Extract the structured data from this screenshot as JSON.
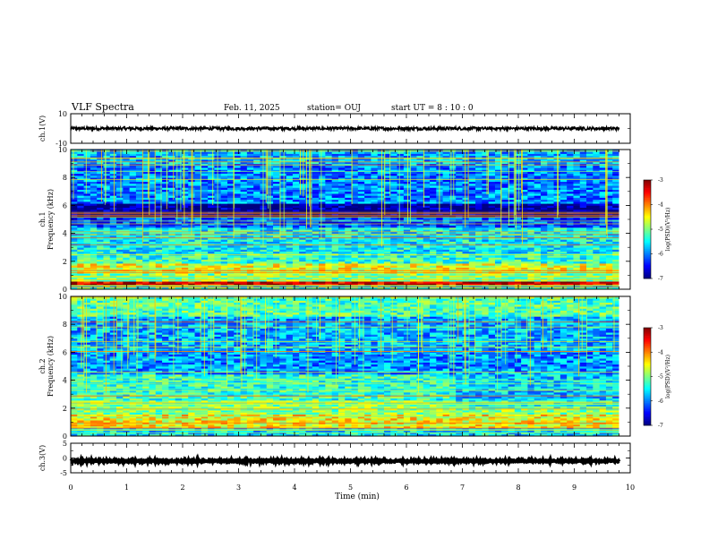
{
  "header": {
    "title": "VLF Spectra",
    "date": "Feb. 11, 2025",
    "station": "station= OUJ",
    "start": "start  UT =   8 : 10 : 0"
  },
  "chart_data": [
    {
      "type": "line",
      "name": "ch1-waveform",
      "ylabel": "ch.1(V)",
      "xlim": [
        0,
        10
      ],
      "ylim": [
        -10,
        10
      ],
      "yticks": [
        "10",
        "-10"
      ],
      "mean_level": 0,
      "noise_amplitude": 1.0,
      "data_end_min": 9.8,
      "color": "#000000"
    },
    {
      "type": "heatmap",
      "name": "ch1-spectrogram",
      "ylabel_line1": "ch.1",
      "ylabel_line2": "Frequency  (kHz)",
      "xlim": [
        0,
        10
      ],
      "ylim": [
        0,
        10
      ],
      "yticks": [
        "0",
        "2",
        "4",
        "6",
        "8",
        "10"
      ],
      "colorscale": {
        "label": "log(PSD)(V²/Hz)",
        "range": [
          -7,
          -3
        ],
        "ticks": [
          "-3",
          "-4",
          "-5",
          "-6",
          "-7"
        ]
      },
      "data_end_min": 9.8,
      "bands_khz": [
        {
          "from": 0.0,
          "to": 0.25,
          "level": -5.2
        },
        {
          "from": 0.25,
          "to": 0.55,
          "level": -3.3
        },
        {
          "from": 0.55,
          "to": 1.2,
          "level": -5.0
        },
        {
          "from": 1.2,
          "to": 1.9,
          "level": -4.6
        },
        {
          "from": 1.9,
          "to": 2.6,
          "level": -5.3
        },
        {
          "from": 2.6,
          "to": 4.4,
          "level": -5.5
        },
        {
          "from": 4.4,
          "to": 5.2,
          "level": -6.2
        },
        {
          "from": 5.2,
          "to": 6.2,
          "level": -6.9
        },
        {
          "from": 6.2,
          "to": 9.0,
          "level": -6.0
        },
        {
          "from": 9.0,
          "to": 10.0,
          "level": -5.8
        }
      ]
    },
    {
      "type": "heatmap",
      "name": "ch2-spectrogram",
      "ylabel_line1": "ch.2",
      "ylabel_line2": "Frequency  (kHz)",
      "xlim": [
        0,
        10
      ],
      "ylim": [
        0,
        10
      ],
      "yticks": [
        "0",
        "2",
        "4",
        "6",
        "8",
        "10"
      ],
      "colorscale": {
        "label": "log(PSD)(V²/Hz)",
        "range": [
          -7,
          -3
        ],
        "ticks": [
          "-3",
          "-4",
          "-5",
          "-6",
          "-7"
        ]
      },
      "data_end_min": 9.8,
      "bands_khz": [
        {
          "from": 0.0,
          "to": 0.6,
          "level": -5.6
        },
        {
          "from": 0.6,
          "to": 1.6,
          "level": -4.5
        },
        {
          "from": 1.6,
          "to": 2.6,
          "level": -5.0
        },
        {
          "from": 2.6,
          "to": 4.4,
          "level": -5.3
        },
        {
          "from": 4.4,
          "to": 6.0,
          "level": -5.9
        },
        {
          "from": 6.0,
          "to": 8.5,
          "level": -5.8
        },
        {
          "from": 8.5,
          "to": 10.0,
          "level": -5.2
        }
      ]
    },
    {
      "type": "line",
      "name": "ch3-waveform",
      "ylabel": "ch.3(V)",
      "xlim": [
        0,
        10
      ],
      "ylim": [
        -5,
        5
      ],
      "yticks": [
        "5",
        "0",
        "-5"
      ],
      "mean_level": -1.0,
      "noise_amplitude": 0.3,
      "data_end_min": 9.8,
      "color": "#000000"
    }
  ],
  "x_axis": {
    "label": "Time  (min)",
    "ticks": [
      "0",
      "1",
      "2",
      "3",
      "4",
      "5",
      "6",
      "7",
      "8",
      "9",
      "10"
    ]
  }
}
